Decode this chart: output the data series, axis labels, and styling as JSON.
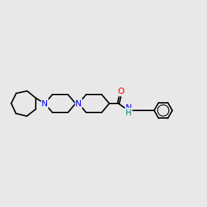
{
  "background_color": "#e8e8e8",
  "bond_color": "#000000",
  "bond_width": 1.4,
  "N_color": "#0000FF",
  "O_color": "#FF0000",
  "NH_N_color": "#0000FF",
  "NH_H_color": "#008080",
  "font_size_atom": 8.5,
  "figsize": [
    3.0,
    3.0
  ],
  "dpi": 100,
  "xlim": [
    -5.2,
    7.2
  ],
  "ylim": [
    -2.8,
    2.8
  ]
}
